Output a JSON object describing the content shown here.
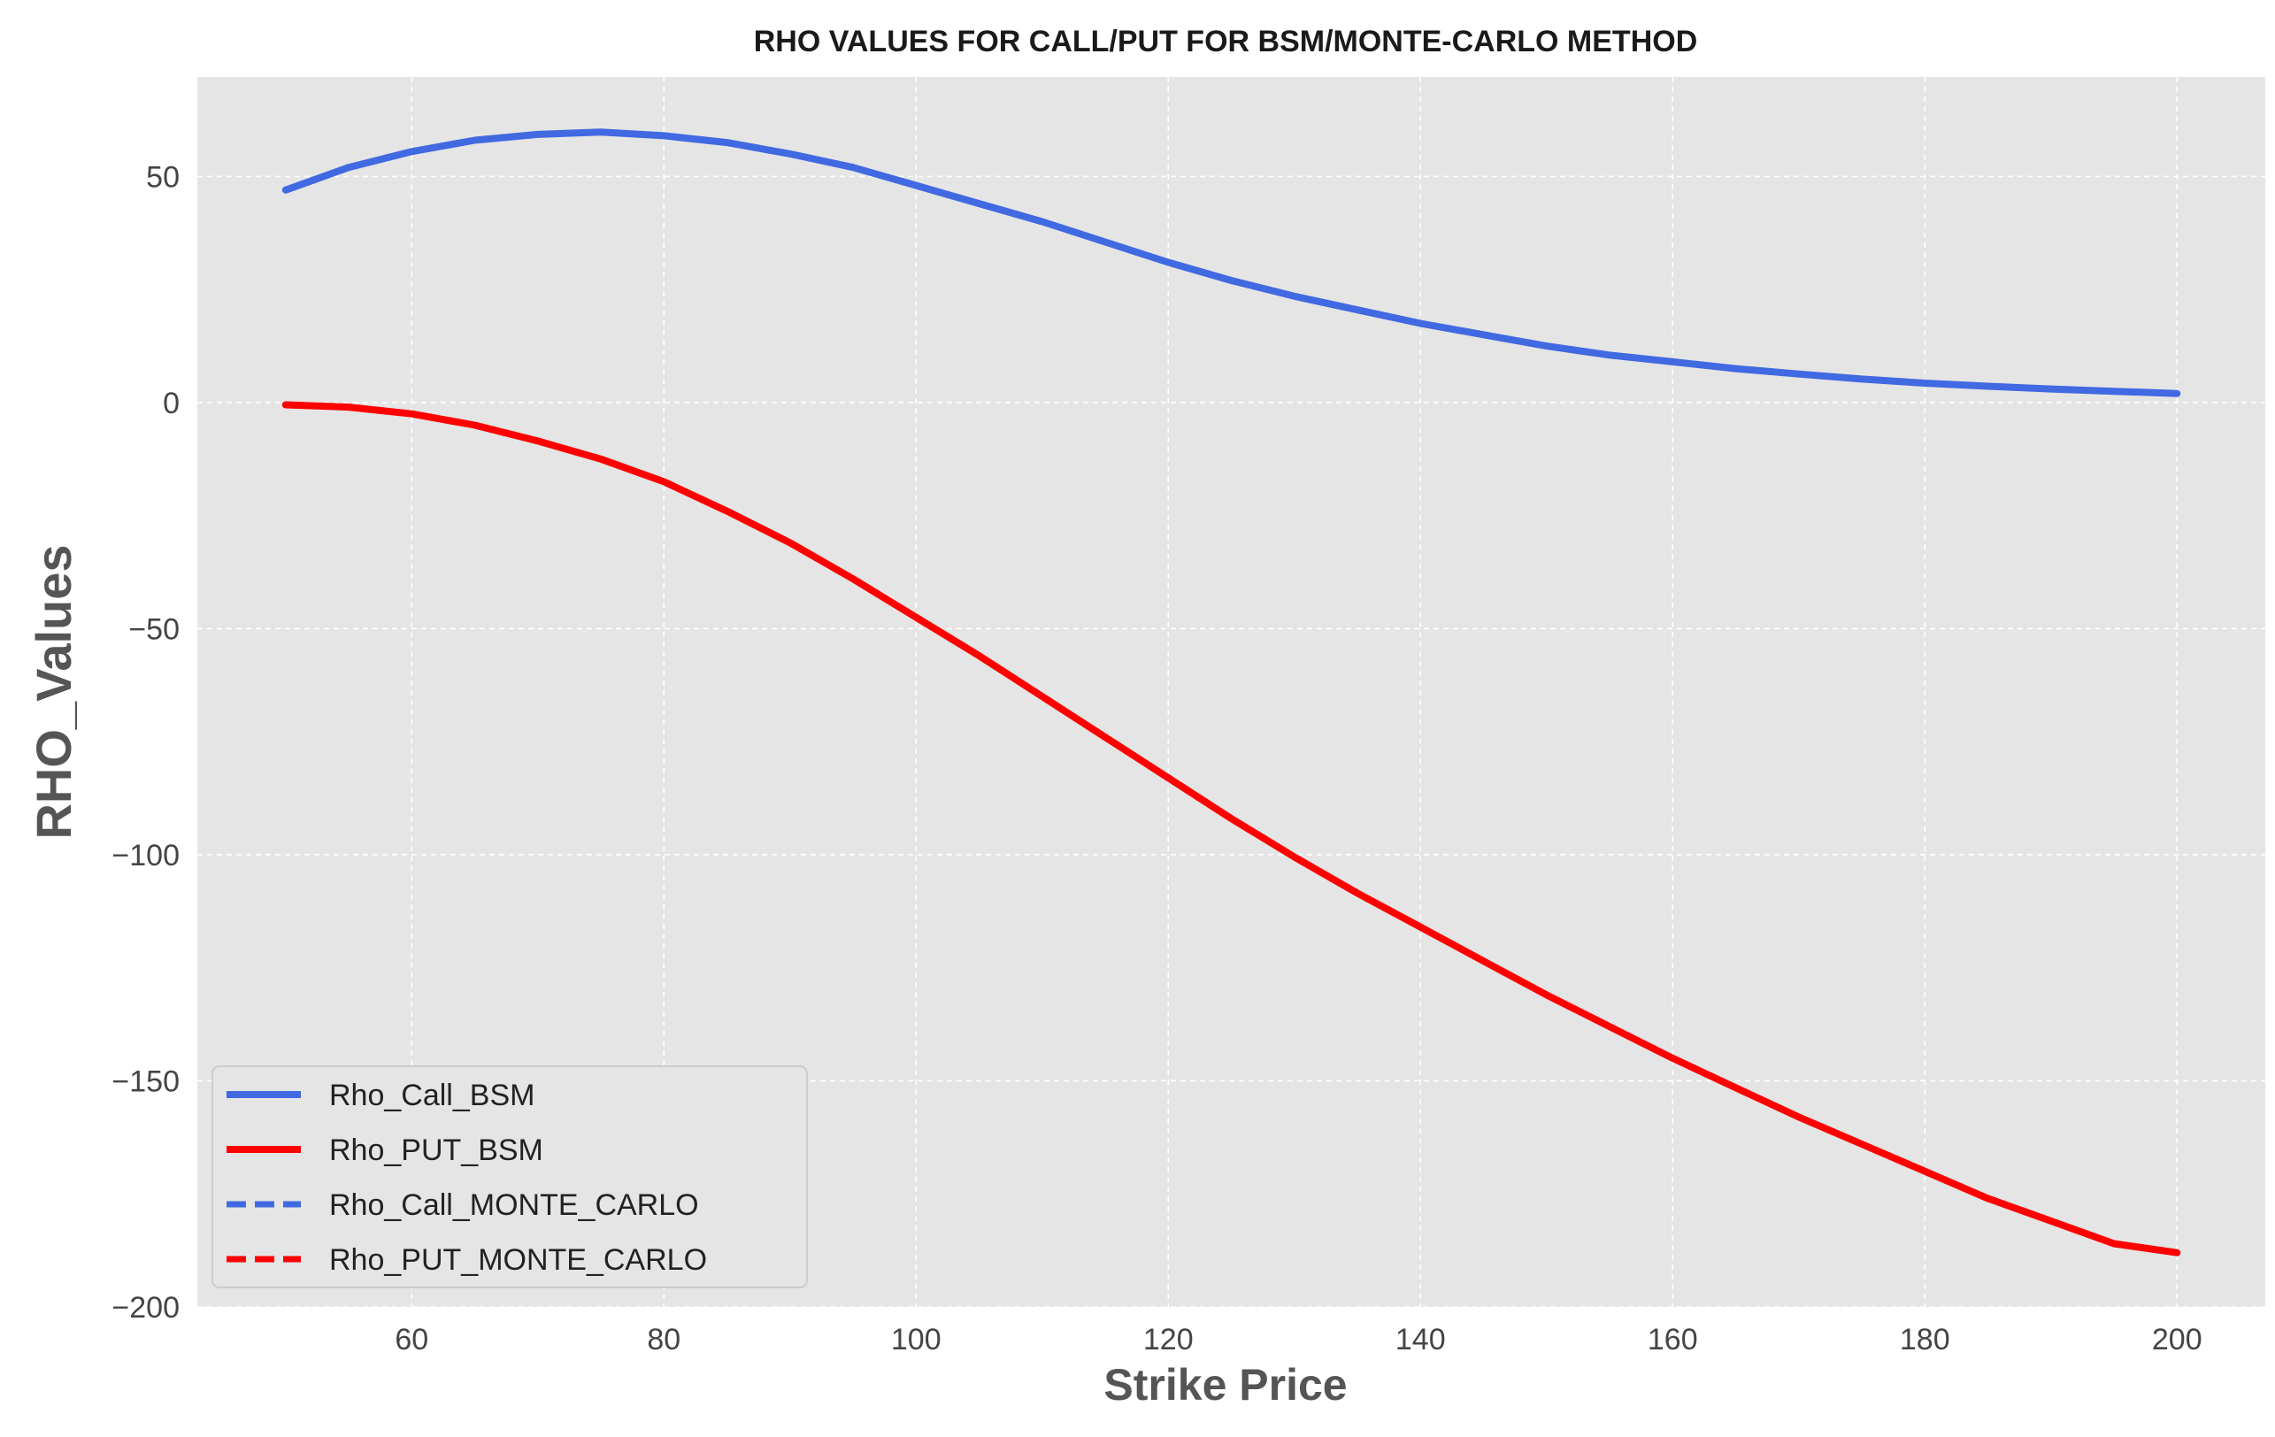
{
  "chart_data": {
    "type": "line",
    "title": "RHO VALUES FOR CALL/PUT FOR BSM/MONTE-CARLO METHOD",
    "xlabel": "Strike Price",
    "ylabel": "RHO_Values",
    "xlim": [
      43,
      207
    ],
    "ylim": [
      -200,
      72
    ],
    "x_ticks": [
      60,
      80,
      100,
      120,
      140,
      160,
      180,
      200
    ],
    "y_ticks": [
      50,
      0,
      -50,
      -100,
      -150,
      -200
    ],
    "x_tick_labels": [
      "60",
      "80",
      "100",
      "120",
      "140",
      "160",
      "180",
      "200"
    ],
    "y_tick_labels": [
      "50",
      "0",
      "−50",
      "−100",
      "−150",
      "−200"
    ],
    "grid": true,
    "background": "#e5e5e5",
    "legend_position": "lower-left",
    "x": [
      50,
      55,
      60,
      65,
      70,
      75,
      80,
      85,
      90,
      95,
      100,
      105,
      110,
      115,
      120,
      125,
      130,
      135,
      140,
      145,
      150,
      155,
      160,
      165,
      170,
      175,
      180,
      185,
      190,
      195,
      200
    ],
    "series": [
      {
        "name": "Rho_Call_BSM",
        "color": "#4169e1",
        "style": "solid",
        "values": [
          47,
          52,
          55.5,
          58,
          59.3,
          59.8,
          59,
          57.5,
          55,
          52,
          48,
          44,
          40,
          35.5,
          31,
          27,
          23.5,
          20.5,
          17.5,
          15,
          12.5,
          10.5,
          9,
          7.5,
          6.3,
          5.2,
          4.3,
          3.6,
          3,
          2.5,
          2
        ]
      },
      {
        "name": "Rho_PUT_BSM",
        "color": "#ff0000",
        "style": "solid",
        "values": [
          -0.5,
          -1,
          -2.5,
          -5,
          -8.5,
          -12.5,
          -17.5,
          -24,
          -31,
          -39,
          -47.5,
          -56,
          -65,
          -74,
          -83,
          -92,
          -100.5,
          -108.5,
          -116,
          -123.5,
          -131,
          -138,
          -145,
          -151.5,
          -158,
          -164,
          -170,
          -176,
          -181,
          -186,
          -188
        ]
      },
      {
        "name": "Rho_Call_MONTE_CARLO",
        "color": "#4169e1",
        "style": "dashed",
        "values": [
          47,
          52,
          55.5,
          58,
          59.3,
          59.8,
          59,
          57.5,
          55,
          52,
          48,
          44,
          40,
          35.5,
          31,
          27,
          23.5,
          20.5,
          17.5,
          15,
          12.5,
          10.5,
          9,
          7.5,
          6.3,
          5.2,
          4.3,
          3.6,
          3,
          2.5,
          2
        ]
      },
      {
        "name": "Rho_PUT_MONTE_CARLO",
        "color": "#ff0000",
        "style": "dashed",
        "values": [
          -0.5,
          -1,
          -2.5,
          -5,
          -8.5,
          -12.5,
          -17.5,
          -24,
          -31,
          -39,
          -47.5,
          -56,
          -65,
          -74,
          -83,
          -92,
          -100.5,
          -108.5,
          -116,
          -123.5,
          -131,
          -138,
          -145,
          -151.5,
          -158,
          -164,
          -170,
          -176,
          -181,
          -186,
          -188
        ]
      }
    ]
  }
}
